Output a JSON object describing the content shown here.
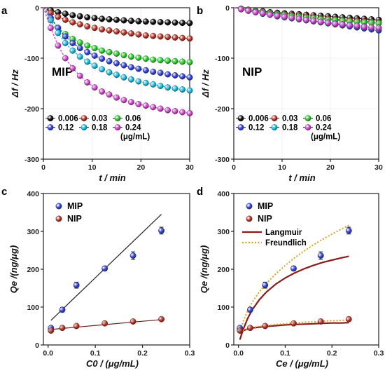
{
  "figure": {
    "panel_labels": [
      "a",
      "b",
      "c",
      "d"
    ]
  },
  "chart_data": [
    {
      "panel": "a",
      "type": "line",
      "inner_label": "MIP",
      "xlabel": "t / min",
      "ylabel": "Δf / Hz",
      "xlim": [
        0,
        30
      ],
      "ylim": [
        -300,
        0
      ],
      "xticks": [
        "0",
        "10",
        "20",
        "30"
      ],
      "yticks": [
        "0",
        "-100",
        "-200",
        "-300"
      ],
      "legend_position": "bottom-left",
      "legend_unit": "(μg/mL)",
      "x": [
        0,
        1.5,
        3,
        4.5,
        6,
        7.5,
        9,
        10.5,
        12,
        13.5,
        15,
        16.5,
        18,
        19.5,
        21,
        22.5,
        24,
        25.5,
        27,
        28.5,
        30
      ],
      "series": [
        {
          "name": "0.006",
          "color": "#111111",
          "values": [
            0,
            -5,
            -9,
            -12,
            -15,
            -17,
            -19,
            -20.5,
            -22,
            -23,
            -24,
            -25,
            -26,
            -26.8,
            -27.5,
            -28,
            -28.5,
            -29,
            -29.5,
            -30,
            -30.5
          ]
        },
        {
          "name": "0.03",
          "color": "#c0392b",
          "values": [
            0,
            -10,
            -18,
            -24,
            -29,
            -33,
            -37,
            -40,
            -43,
            -45,
            -47,
            -49,
            -51,
            -53,
            -55,
            -56,
            -57,
            -58,
            -59,
            -60,
            -61
          ]
        },
        {
          "name": "0.06",
          "color": "#33d633",
          "values": [
            0,
            -22,
            -40,
            -52,
            -62,
            -69,
            -75,
            -80,
            -85,
            -88,
            -91,
            -94,
            -97,
            -99,
            -101,
            -103,
            -104,
            -105,
            -106,
            -107,
            -108
          ]
        },
        {
          "name": "0.12",
          "color": "#3949e0",
          "values": [
            0,
            -20,
            -40,
            -57,
            -70,
            -80,
            -88,
            -95,
            -101,
            -106,
            -110,
            -114,
            -118,
            -121,
            -124,
            -127,
            -129,
            -132,
            -134,
            -136,
            -138
          ]
        },
        {
          "name": "0.18",
          "color": "#22c4e8",
          "values": [
            0,
            -25,
            -50,
            -70,
            -85,
            -97,
            -107,
            -115,
            -122,
            -128,
            -133,
            -138,
            -142,
            -146,
            -149,
            -152,
            -155,
            -158,
            -160,
            -162,
            -164
          ]
        },
        {
          "name": "0.24",
          "color": "#d94fd4",
          "values": [
            0,
            -40,
            -75,
            -100,
            -120,
            -135,
            -148,
            -158,
            -166,
            -172,
            -178,
            -183,
            -187,
            -191,
            -194,
            -197,
            -200,
            -203,
            -205,
            -207,
            -209
          ]
        }
      ]
    },
    {
      "panel": "b",
      "type": "line",
      "inner_label": "NIP",
      "xlabel": "t / min",
      "ylabel": "Δf / Hz",
      "xlim": [
        0,
        30
      ],
      "ylim": [
        -300,
        0
      ],
      "xticks": [
        "0",
        "10",
        "20",
        "30"
      ],
      "yticks": [
        "0",
        "-100",
        "-200",
        "-300"
      ],
      "legend_position": "bottom-left",
      "legend_unit": "(μg/mL)",
      "x": [
        0,
        1.5,
        3,
        4.5,
        6,
        7.5,
        9,
        10.5,
        12,
        13.5,
        15,
        16.5,
        18,
        19.5,
        21,
        22.5,
        24,
        25.5,
        27,
        28.5,
        30
      ],
      "series": [
        {
          "name": "0.006",
          "color": "#111111",
          "values": [
            0,
            -2,
            -4,
            -6,
            -7,
            -9,
            -10,
            -11,
            -12,
            -13,
            -14,
            -15,
            -16,
            -17,
            -18,
            -19,
            -20,
            -21,
            -22,
            -23,
            -24
          ]
        },
        {
          "name": "0.03",
          "color": "#c0392b",
          "values": [
            0,
            -2,
            -4,
            -6,
            -8,
            -10,
            -12,
            -13,
            -15,
            -16,
            -18,
            -19,
            -21,
            -22,
            -23,
            -24,
            -25,
            -26,
            -27,
            -28,
            -29
          ]
        },
        {
          "name": "0.06",
          "color": "#33d633",
          "values": [
            0,
            -2,
            -5,
            -7,
            -9,
            -11,
            -13,
            -15,
            -17,
            -18,
            -20,
            -21,
            -23,
            -24,
            -25,
            -26,
            -27,
            -28,
            -29,
            -30,
            -31
          ]
        },
        {
          "name": "0.12",
          "color": "#3949e0",
          "values": [
            0,
            -3,
            -6,
            -9,
            -12,
            -14,
            -17,
            -19,
            -21,
            -23,
            -25,
            -27,
            -29,
            -31,
            -33,
            -35,
            -37,
            -39,
            -41,
            -43,
            -45
          ]
        },
        {
          "name": "0.18",
          "color": "#22c4e8",
          "values": [
            0,
            -3,
            -6,
            -8,
            -11,
            -13,
            -15,
            -18,
            -20,
            -22,
            -24,
            -26,
            -28,
            -29,
            -31,
            -33,
            -34,
            -36,
            -37,
            -39,
            -40
          ]
        },
        {
          "name": "0.24",
          "color": "#d94fd4",
          "values": [
            0,
            -3,
            -6,
            -9,
            -11,
            -14,
            -16,
            -18,
            -20,
            -22,
            -24,
            -26,
            -28,
            -30,
            -32,
            -33,
            -35,
            -36,
            -38,
            -39,
            -40
          ]
        }
      ]
    },
    {
      "panel": "c",
      "type": "scatter",
      "xlabel": "C0 / (μg/mL)",
      "ylabel": "Qe /(ng/μg)",
      "xlim": [
        -0.01,
        0.3
      ],
      "ylim": [
        0,
        400
      ],
      "xticks": [
        "0.0",
        "0.1",
        "0.2",
        "0.3"
      ],
      "yticks": [
        "0",
        "100",
        "200",
        "300",
        "400"
      ],
      "legend_position": "top-left",
      "series": [
        {
          "name": "MIP",
          "color": "#3949e0",
          "x": [
            0.006,
            0.03,
            0.06,
            0.12,
            0.18,
            0.24
          ],
          "values": [
            45,
            93,
            158,
            202,
            236,
            302
          ],
          "errors": [
            5,
            6,
            8,
            6,
            10,
            9
          ],
          "fit": {
            "x": [
              0.006,
              0.24
            ],
            "values": [
              65,
              345
            ]
          }
        },
        {
          "name": "NIP",
          "color": "#c0392b",
          "x": [
            0.006,
            0.03,
            0.06,
            0.12,
            0.18,
            0.24
          ],
          "values": [
            38,
            45,
            50,
            57,
            62,
            68
          ],
          "errors": [
            3,
            3,
            3,
            3,
            3,
            4
          ],
          "fit": {
            "x": [
              0.006,
              0.24
            ],
            "values": [
              41,
              67
            ]
          }
        }
      ]
    },
    {
      "panel": "d",
      "type": "scatter",
      "xlabel": "Ce / (μg/mL)",
      "ylabel": "Qe /(ng/μg)",
      "xlim": [
        -0.01,
        0.3
      ],
      "ylim": [
        0,
        400
      ],
      "xticks": [
        "0.0",
        "0.1",
        "0.2",
        "0.3"
      ],
      "yticks": [
        "0",
        "100",
        "200",
        "300",
        "400"
      ],
      "legend_position": "top-left",
      "series": [
        {
          "name": "MIP",
          "color": "#3949e0",
          "x": [
            0.003,
            0.025,
            0.057,
            0.118,
            0.176,
            0.236
          ],
          "values": [
            45,
            93,
            158,
            202,
            236,
            302
          ],
          "errors": [
            5,
            6,
            8,
            6,
            10,
            9
          ]
        },
        {
          "name": "NIP",
          "color": "#c0392b",
          "x": [
            0.003,
            0.025,
            0.057,
            0.118,
            0.176,
            0.236
          ],
          "values": [
            38,
            45,
            50,
            57,
            62,
            68
          ],
          "errors": [
            3,
            3,
            3,
            3,
            3,
            4
          ]
        }
      ],
      "fits": [
        {
          "name": "Langmuir",
          "color": "#8b1a1a",
          "style": "solid",
          "curves": [
            {
              "x": [
                0.003,
                0.01,
                0.02,
                0.03,
                0.045,
                0.06,
                0.08,
                0.1,
                0.12,
                0.14,
                0.16,
                0.18,
                0.2,
                0.22,
                0.236
              ],
              "values": [
                14,
                41,
                71,
                94,
                120,
                140,
                161,
                177,
                190,
                201,
                210,
                218,
                224,
                230,
                234
              ]
            },
            {
              "x": [
                0.003,
                0.01,
                0.02,
                0.03,
                0.045,
                0.06,
                0.08,
                0.1,
                0.12,
                0.14,
                0.16,
                0.18,
                0.2,
                0.22,
                0.236
              ],
              "values": [
                30,
                38,
                42,
                45,
                47,
                49,
                51,
                53,
                54,
                55,
                56,
                57,
                58,
                58,
                59
              ]
            }
          ]
        },
        {
          "name": "Freundlich",
          "color": "#e0a020",
          "style": "dotted",
          "curves": [
            {
              "x": [
                0.003,
                0.01,
                0.02,
                0.03,
                0.045,
                0.06,
                0.08,
                0.1,
                0.12,
                0.14,
                0.16,
                0.18,
                0.2,
                0.22,
                0.236
              ],
              "values": [
                30,
                62,
                92,
                114,
                141,
                163,
                188,
                210,
                230,
                248,
                264,
                279,
                293,
                306,
                316
              ]
            },
            {
              "x": [
                0.003,
                0.01,
                0.02,
                0.03,
                0.045,
                0.06,
                0.08,
                0.1,
                0.12,
                0.14,
                0.16,
                0.18,
                0.2,
                0.22,
                0.236
              ],
              "values": [
                34,
                39,
                43,
                46,
                49,
                51,
                54,
                56,
                58,
                60,
                61,
                63,
                64,
                65,
                66
              ]
            }
          ]
        }
      ]
    }
  ]
}
